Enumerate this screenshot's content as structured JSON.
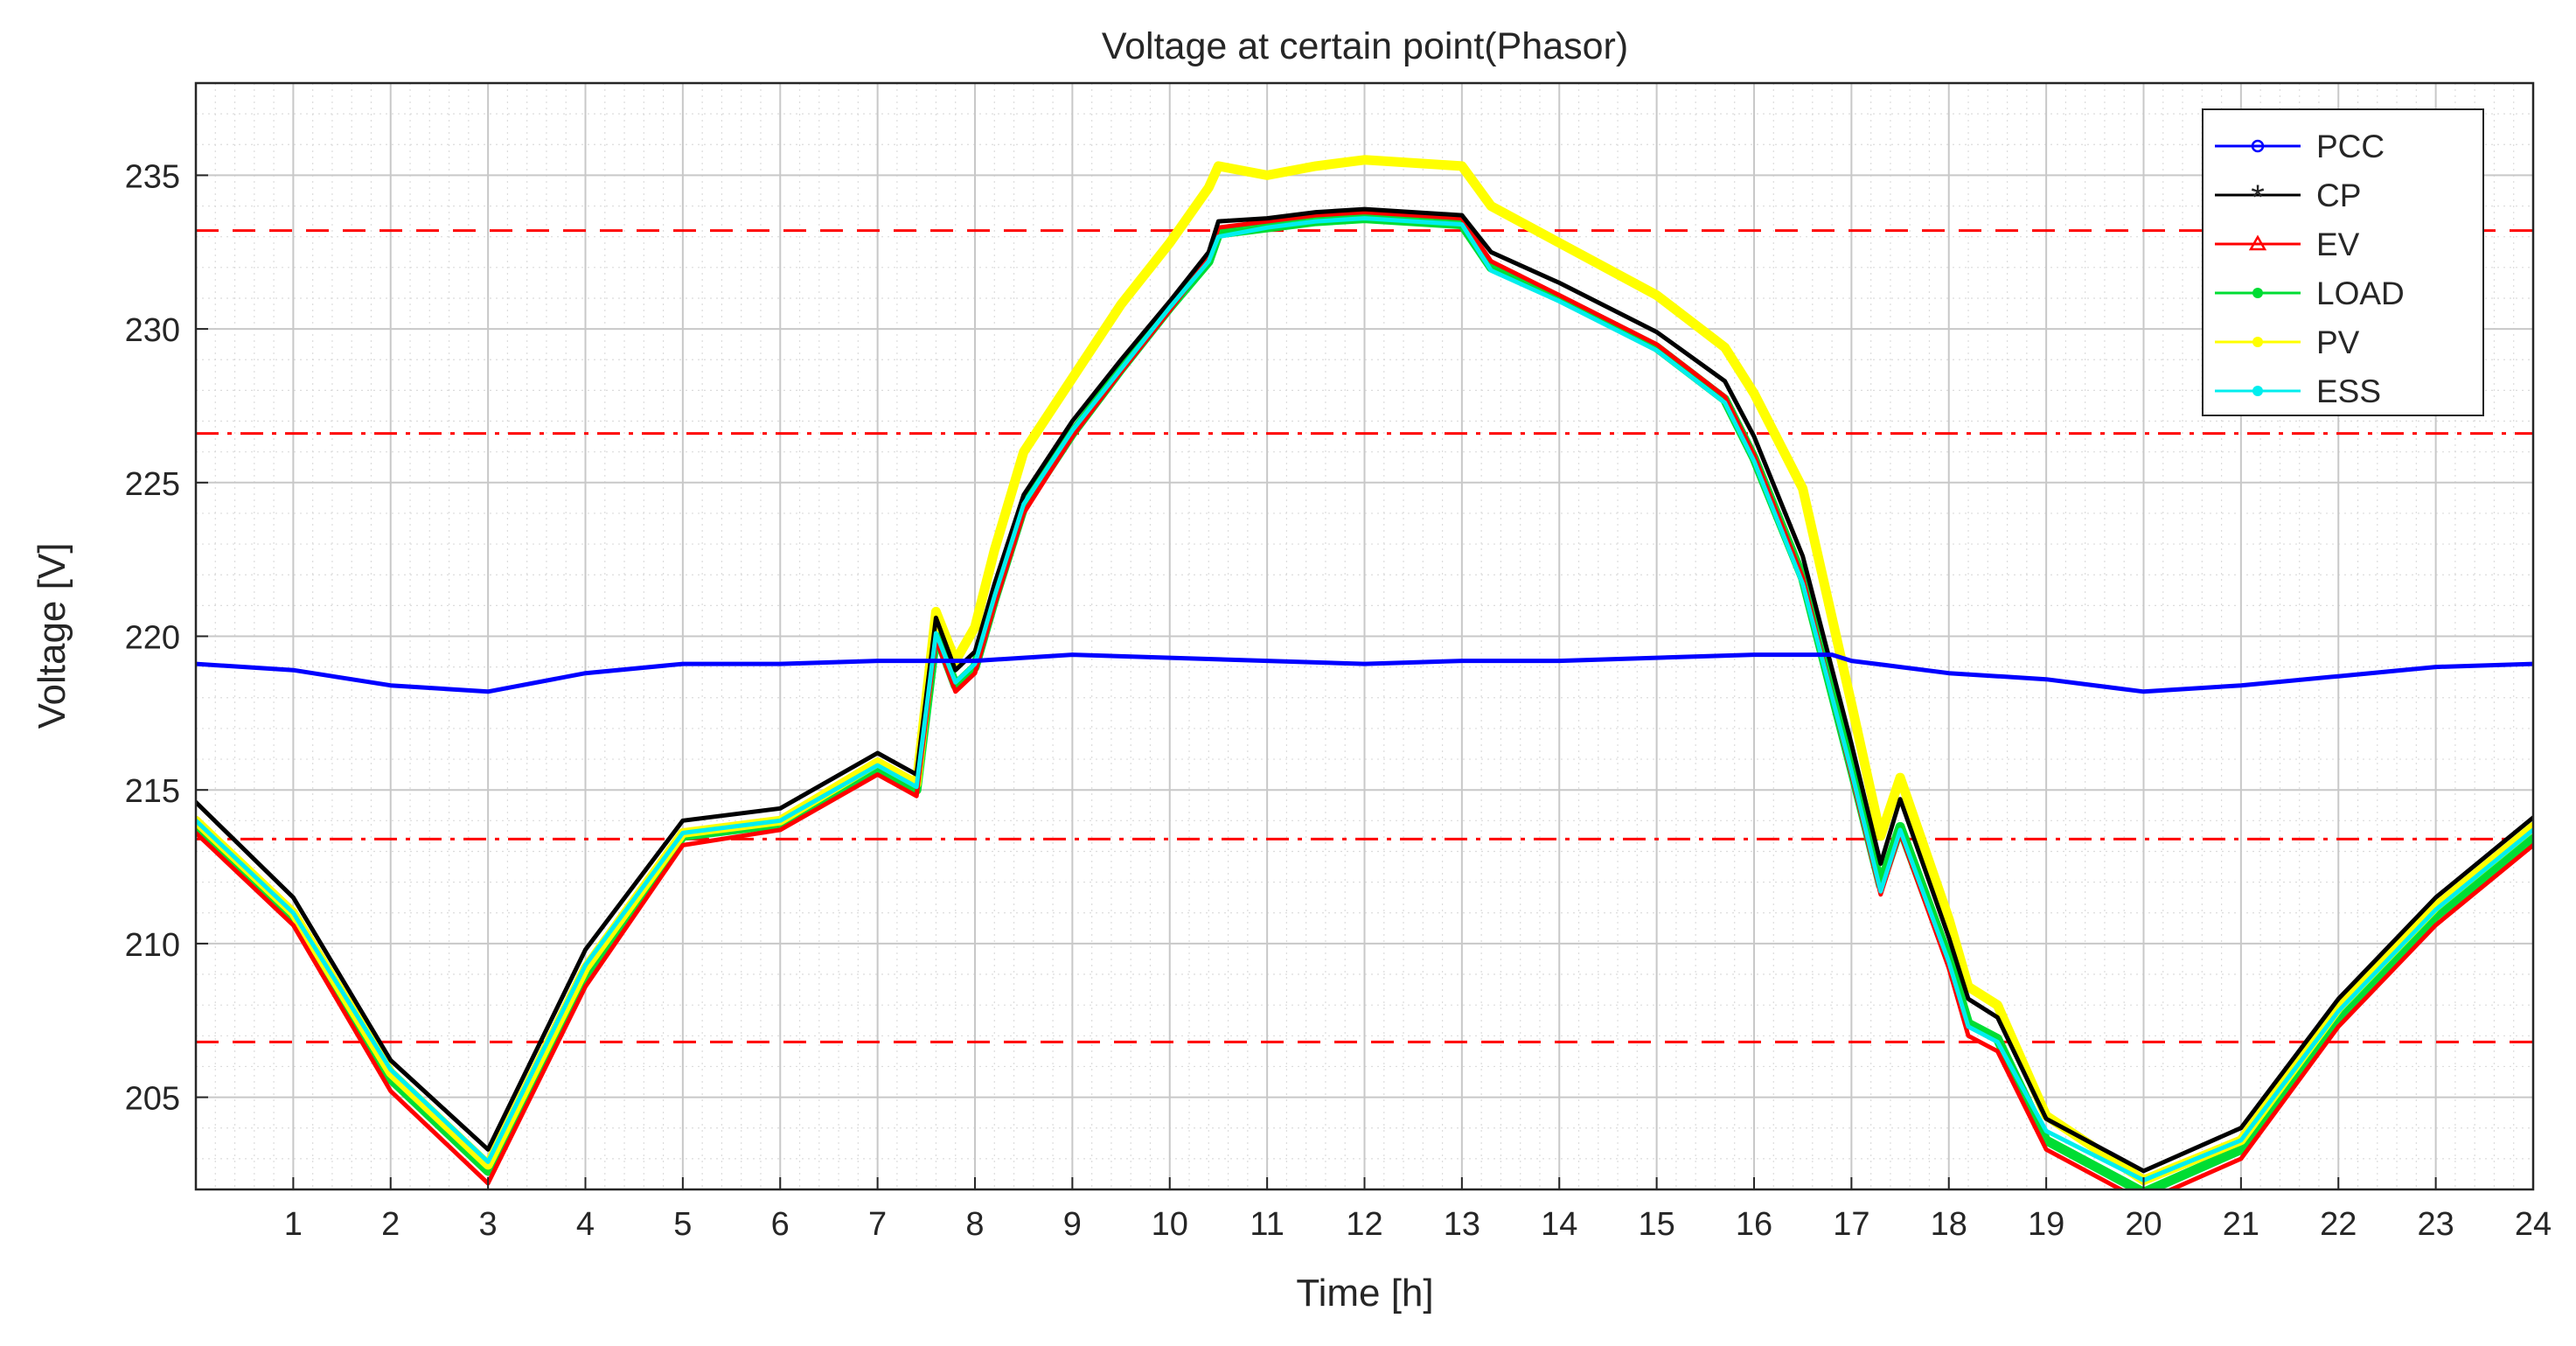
{
  "chart_data": {
    "type": "line",
    "title": "Voltage at certain point(Phasor)",
    "xlabel": "Time [h]",
    "ylabel": "Voltage [V]",
    "xlim": [
      0,
      24
    ],
    "ylim": [
      202,
      238
    ],
    "xticks": [
      1,
      2,
      3,
      4,
      5,
      6,
      7,
      8,
      9,
      10,
      11,
      12,
      13,
      14,
      15,
      16,
      17,
      18,
      19,
      20,
      21,
      22,
      23,
      24
    ],
    "yticks": [
      205,
      210,
      215,
      220,
      225,
      230,
      235
    ],
    "grid": true,
    "minor_grid": true,
    "legend_position": "top-right",
    "reference_lines": [
      {
        "y": 233.2,
        "style": "dashed",
        "color": "#ff0000"
      },
      {
        "y": 226.6,
        "style": "dashdot",
        "color": "#ff0000"
      },
      {
        "y": 213.4,
        "style": "dashdot",
        "color": "#ff0000"
      },
      {
        "y": 206.8,
        "style": "dashed",
        "color": "#ff0000"
      }
    ],
    "series": [
      {
        "name": "PCC",
        "color": "#0000ff",
        "marker": "o",
        "width": 5,
        "x": [
          0,
          1,
          2,
          3,
          4,
          5,
          6,
          7,
          8,
          8.5,
          9,
          10,
          11,
          12,
          13,
          14,
          15,
          16,
          16.8,
          17,
          17.5,
          18,
          18.5,
          19,
          20,
          21,
          22,
          23,
          24
        ],
        "y": [
          219.1,
          218.9,
          218.4,
          218.2,
          218.8,
          219.1,
          219.1,
          219.2,
          219.2,
          219.3,
          219.4,
          219.3,
          219.2,
          219.1,
          219.2,
          219.2,
          219.3,
          219.4,
          219.4,
          219.2,
          219.0,
          218.8,
          218.7,
          218.6,
          218.2,
          218.4,
          218.7,
          219.0,
          219.1
        ]
      },
      {
        "name": "CP",
        "color": "#000000",
        "marker": "*",
        "width": 5,
        "x": [
          0,
          1,
          2,
          3,
          4,
          5,
          6,
          7,
          7.4,
          7.6,
          7.8,
          8.0,
          8.2,
          8.5,
          9,
          9.5,
          10,
          10.4,
          10.5,
          11,
          11.5,
          12,
          13,
          13.3,
          14,
          15,
          15.7,
          16,
          16.5,
          17,
          17.3,
          17.5,
          18,
          18.2,
          18.5,
          19,
          20,
          21,
          22,
          23,
          24
        ],
        "y": [
          214.6,
          211.5,
          206.2,
          203.3,
          209.8,
          214.0,
          214.4,
          216.2,
          215.5,
          220.6,
          218.9,
          219.5,
          221.7,
          224.6,
          227.0,
          229.0,
          230.9,
          232.5,
          233.5,
          233.6,
          233.8,
          233.9,
          233.7,
          232.5,
          231.5,
          229.9,
          228.3,
          226.5,
          222.6,
          216.5,
          212.6,
          214.7,
          210.2,
          208.2,
          207.6,
          204.3,
          202.6,
          204.0,
          208.2,
          211.5,
          214.1
        ]
      },
      {
        "name": "EV",
        "color": "#ff0000",
        "marker": "^",
        "width": 5,
        "x": [
          0,
          1,
          2,
          3,
          4,
          5,
          6,
          7,
          7.4,
          7.6,
          7.8,
          8.0,
          8.2,
          8.5,
          9,
          9.5,
          10,
          10.4,
          10.5,
          11,
          11.5,
          12,
          13,
          13.3,
          14,
          15,
          15.7,
          16,
          16.5,
          17,
          17.3,
          17.5,
          18,
          18.2,
          18.5,
          19,
          20,
          21,
          22,
          23,
          24
        ],
        "y": [
          213.6,
          210.6,
          205.2,
          202.2,
          208.6,
          213.2,
          213.7,
          215.5,
          214.8,
          219.9,
          218.2,
          218.8,
          221.0,
          224.0,
          226.5,
          228.6,
          230.6,
          232.3,
          233.3,
          233.5,
          233.7,
          233.8,
          233.6,
          232.2,
          231.1,
          229.5,
          227.8,
          225.9,
          221.9,
          215.5,
          211.6,
          213.6,
          209.2,
          207.0,
          206.5,
          203.3,
          201.6,
          203.0,
          207.3,
          210.6,
          213.2
        ]
      },
      {
        "name": "LOAD",
        "color": "#00dd33",
        "marker": "•",
        "width": 11,
        "x": [
          0,
          1,
          2,
          3,
          4,
          5,
          6,
          7,
          7.4,
          7.6,
          7.8,
          8.0,
          8.2,
          8.5,
          9,
          9.5,
          10,
          10.4,
          10.5,
          11,
          11.5,
          12,
          13,
          13.3,
          14,
          15,
          15.7,
          16,
          16.5,
          17,
          17.3,
          17.5,
          18,
          18.2,
          18.5,
          19,
          20,
          21,
          22,
          23,
          24
        ],
        "y": [
          213.8,
          210.8,
          205.6,
          202.6,
          209.0,
          213.5,
          213.9,
          215.7,
          215.0,
          220.1,
          218.4,
          219.0,
          221.2,
          224.2,
          226.6,
          228.7,
          230.7,
          232.2,
          233.1,
          233.3,
          233.5,
          233.6,
          233.4,
          232.0,
          231.0,
          229.4,
          227.7,
          225.8,
          221.9,
          215.7,
          211.9,
          213.8,
          209.5,
          207.4,
          206.9,
          203.6,
          201.9,
          203.3,
          207.6,
          210.9,
          213.4
        ]
      },
      {
        "name": "PV",
        "color": "#ffff00",
        "marker": "•",
        "width": 11,
        "x": [
          0,
          1,
          2,
          3,
          4,
          5,
          6,
          7,
          7.4,
          7.6,
          7.8,
          8.0,
          8.2,
          8.5,
          9,
          9.5,
          10,
          10.4,
          10.5,
          11,
          11.5,
          12,
          13,
          13.3,
          14,
          15,
          15.7,
          16,
          16.5,
          17,
          17.3,
          17.5,
          18,
          18.2,
          18.5,
          19,
          20,
          21,
          22,
          23,
          24
        ],
        "y": [
          214.0,
          211.0,
          205.8,
          202.8,
          209.2,
          213.6,
          214.0,
          215.9,
          215.2,
          220.8,
          219.2,
          220.3,
          222.8,
          226.0,
          228.4,
          230.8,
          232.8,
          234.6,
          235.3,
          235.0,
          235.3,
          235.5,
          235.3,
          234.0,
          232.8,
          231.1,
          229.4,
          227.9,
          224.8,
          217.8,
          213.5,
          215.4,
          210.8,
          208.6,
          208.0,
          204.4,
          202.3,
          203.6,
          207.9,
          211.2,
          213.8
        ]
      },
      {
        "name": "ESS",
        "color": "#00eeee",
        "marker": "•",
        "width": 5,
        "x": [
          0,
          1,
          2,
          3,
          4,
          5,
          6,
          7,
          7.4,
          7.6,
          7.8,
          8.0,
          8.2,
          8.5,
          9,
          9.5,
          10,
          10.4,
          10.5,
          11,
          11.5,
          12,
          13,
          13.3,
          14,
          15,
          15.7,
          16,
          16.5,
          17,
          17.3,
          17.5,
          18,
          18.2,
          18.5,
          19,
          20,
          21,
          22,
          23,
          24
        ],
        "y": [
          214.0,
          211.0,
          205.9,
          202.9,
          209.3,
          213.6,
          214.0,
          215.8,
          215.1,
          220.1,
          218.5,
          219.1,
          221.3,
          224.3,
          226.7,
          228.7,
          230.7,
          232.2,
          233.0,
          233.3,
          233.5,
          233.6,
          233.4,
          231.9,
          230.9,
          229.3,
          227.6,
          225.7,
          221.7,
          215.6,
          211.7,
          213.7,
          209.4,
          207.3,
          206.8,
          203.9,
          202.3,
          203.6,
          207.8,
          211.1,
          213.7
        ]
      }
    ]
  }
}
